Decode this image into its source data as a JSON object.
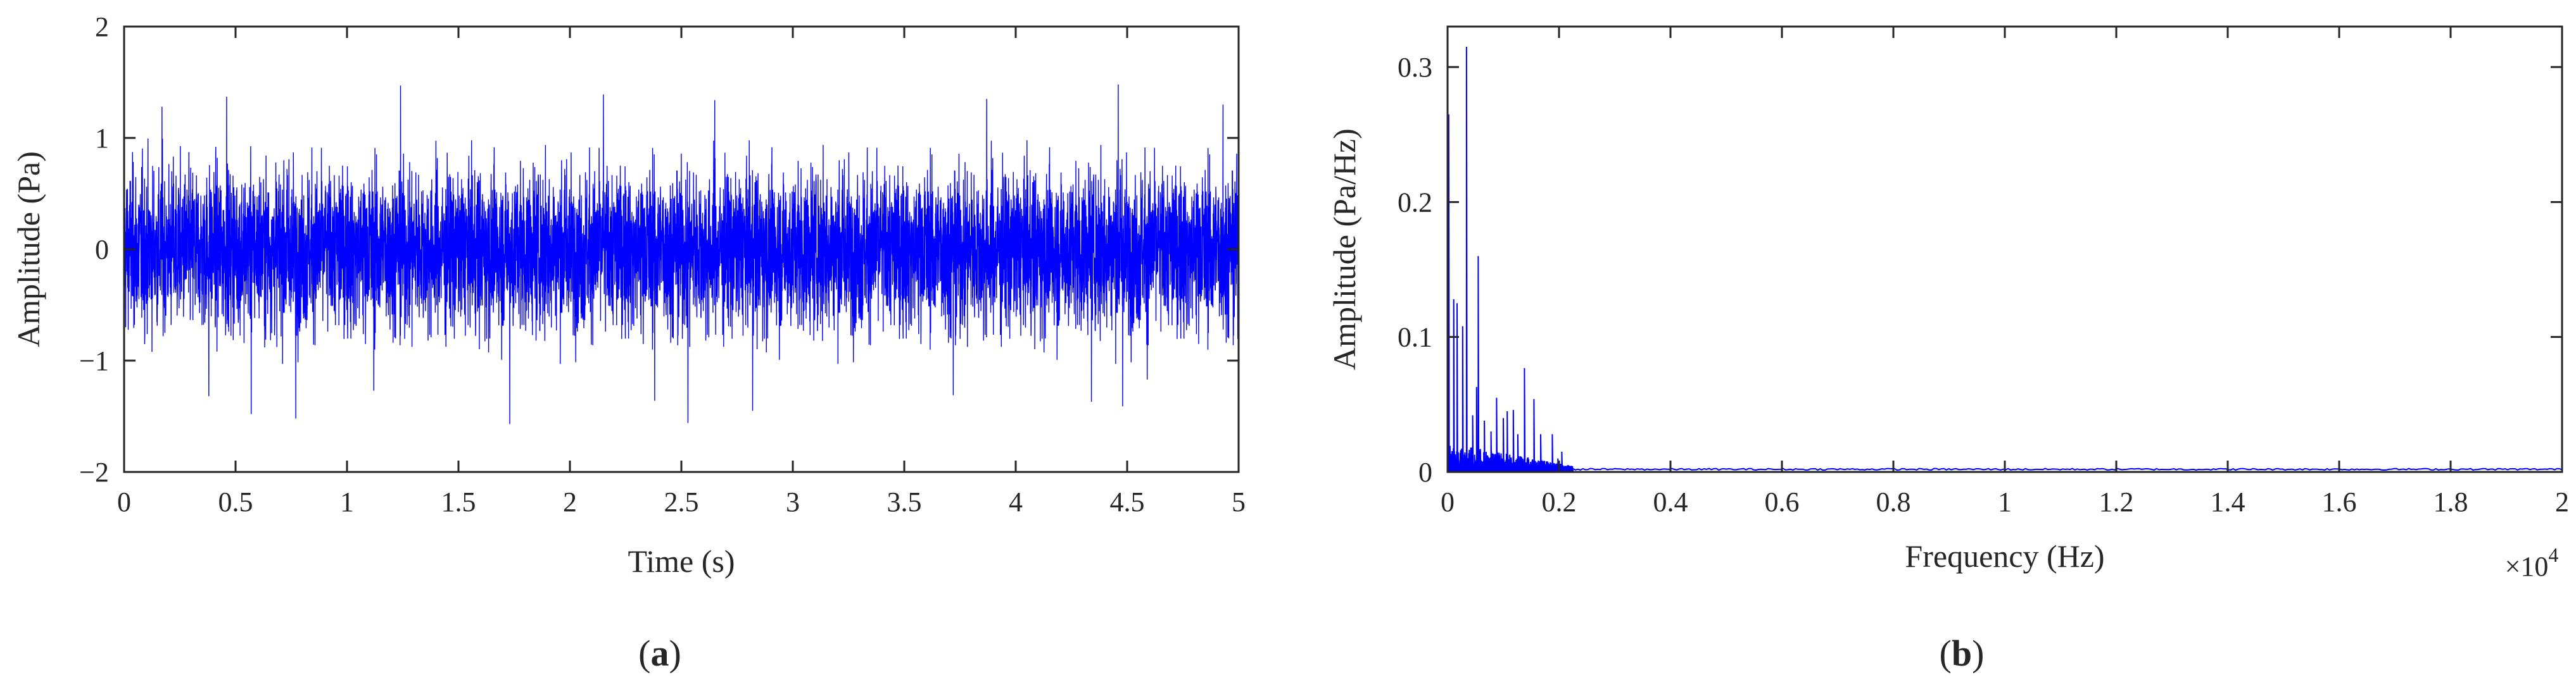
{
  "chart_data": [
    {
      "type": "line",
      "panel_label": "a",
      "xlabel": "Time (s)",
      "ylabel": "Amplitude (Pa)",
      "xlim": [
        0,
        5
      ],
      "ylim": [
        -2,
        2
      ],
      "x_ticks": [
        0,
        0.5,
        1,
        1.5,
        2,
        2.5,
        3,
        3.5,
        4,
        4.5,
        5
      ],
      "x_tick_labels": [
        "0",
        "0.5",
        "1",
        "1.5",
        "2",
        "2.5",
        "3",
        "3.5",
        "4",
        "4.5",
        "5"
      ],
      "y_ticks": [
        -2,
        -1,
        0,
        1,
        2
      ],
      "y_tick_labels": [
        "−2",
        "−1",
        "0",
        "1",
        "2"
      ],
      "grid": false,
      "color": "#0000ff",
      "description_signal": {
        "kind": "broadband noise",
        "duration_s": 5,
        "typical_envelope": [
          -1.0,
          1.05
        ],
        "peaks": [
          {
            "x": 0.17,
            "y": 1.28
          },
          {
            "x": 0.46,
            "y": 1.37
          },
          {
            "x": 1.24,
            "y": 1.47
          },
          {
            "x": 2.15,
            "y": 1.39
          },
          {
            "x": 2.65,
            "y": 1.34
          },
          {
            "x": 3.87,
            "y": 1.35
          },
          {
            "x": 4.46,
            "y": 1.48
          },
          {
            "x": 4.93,
            "y": 1.3
          }
        ],
        "troughs": [
          {
            "x": 0.38,
            "y": -1.32
          },
          {
            "x": 0.57,
            "y": -1.48
          },
          {
            "x": 0.77,
            "y": -1.52
          },
          {
            "x": 1.12,
            "y": -1.27
          },
          {
            "x": 1.73,
            "y": -1.57
          },
          {
            "x": 2.38,
            "y": -1.36
          },
          {
            "x": 2.53,
            "y": -1.56
          },
          {
            "x": 2.82,
            "y": -1.45
          },
          {
            "x": 3.72,
            "y": -1.31
          },
          {
            "x": 4.34,
            "y": -1.37
          },
          {
            "x": 4.48,
            "y": -1.41
          },
          {
            "x": 4.59,
            "y": -1.17
          }
        ]
      }
    },
    {
      "type": "line",
      "panel_label": "b",
      "xlabel": "Frequency (Hz)",
      "ylabel": "Amplitude (Pa/Hz)",
      "x_multiplier": "×10^4",
      "xlim": [
        0,
        2
      ],
      "ylim": [
        0,
        0.33
      ],
      "x_ticks": [
        0,
        0.2,
        0.4,
        0.6,
        0.8,
        1,
        1.2,
        1.4,
        1.6,
        1.8,
        2
      ],
      "x_tick_labels": [
        "0",
        "0.2",
        "0.4",
        "0.6",
        "0.8",
        "1",
        "1.2",
        "1.4",
        "1.6",
        "1.8",
        "2"
      ],
      "y_ticks": [
        0,
        0.1,
        0.2,
        0.3
      ],
      "y_tick_labels": [
        "0",
        "0.1",
        "0.2",
        "0.3"
      ],
      "grid": false,
      "color": "#0000ff",
      "peaks": [
        {
          "x": 0.002,
          "y": 0.265
        },
        {
          "x": 0.011,
          "y": 0.128
        },
        {
          "x": 0.017,
          "y": 0.125
        },
        {
          "x": 0.027,
          "y": 0.108
        },
        {
          "x": 0.034,
          "y": 0.315
        },
        {
          "x": 0.045,
          "y": 0.042
        },
        {
          "x": 0.052,
          "y": 0.063
        },
        {
          "x": 0.055,
          "y": 0.16
        },
        {
          "x": 0.066,
          "y": 0.038
        },
        {
          "x": 0.078,
          "y": 0.03
        },
        {
          "x": 0.088,
          "y": 0.055
        },
        {
          "x": 0.1,
          "y": 0.04
        },
        {
          "x": 0.107,
          "y": 0.045
        },
        {
          "x": 0.118,
          "y": 0.046
        },
        {
          "x": 0.126,
          "y": 0.028
        },
        {
          "x": 0.138,
          "y": 0.077
        },
        {
          "x": 0.155,
          "y": 0.054
        },
        {
          "x": 0.167,
          "y": 0.028
        },
        {
          "x": 0.188,
          "y": 0.028
        },
        {
          "x": 0.198,
          "y": 0.01
        },
        {
          "x": 0.205,
          "y": 0.015
        },
        {
          "x": 0.22,
          "y": 0.004
        }
      ],
      "tail_level": 0.002
    }
  ]
}
